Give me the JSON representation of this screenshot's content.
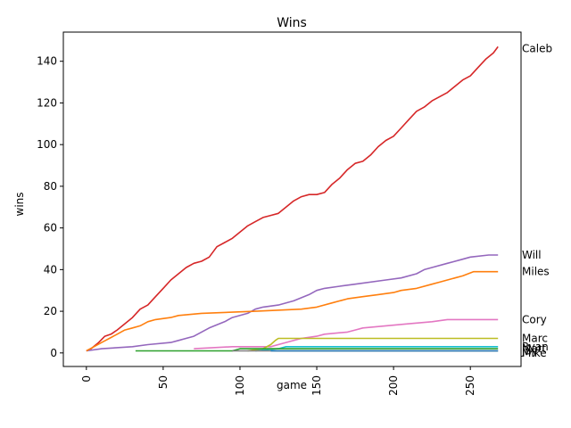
{
  "chart_data": {
    "type": "line",
    "title": "Wins",
    "xlabel": "game",
    "ylabel": "wins",
    "xlim": [
      -15,
      283
    ],
    "ylim": [
      -6.5,
      154
    ],
    "x_ticks": [
      0,
      50,
      100,
      150,
      200,
      250
    ],
    "y_ticks": [
      0,
      20,
      40,
      60,
      80,
      100,
      120,
      140
    ],
    "grid": false,
    "legend": "labels at right end of lines",
    "series": [
      {
        "name": "Caleb",
        "color": "#d62728",
        "label_y": 146,
        "points": [
          [
            0,
            1
          ],
          [
            3,
            2
          ],
          [
            8,
            5
          ],
          [
            12,
            8
          ],
          [
            16,
            9
          ],
          [
            20,
            11
          ],
          [
            25,
            14
          ],
          [
            30,
            17
          ],
          [
            35,
            21
          ],
          [
            40,
            23
          ],
          [
            45,
            27
          ],
          [
            50,
            31
          ],
          [
            55,
            35
          ],
          [
            60,
            38
          ],
          [
            65,
            41
          ],
          [
            70,
            43
          ],
          [
            75,
            44
          ],
          [
            80,
            46
          ],
          [
            85,
            51
          ],
          [
            90,
            53
          ],
          [
            95,
            55
          ],
          [
            100,
            58
          ],
          [
            105,
            61
          ],
          [
            110,
            63
          ],
          [
            115,
            65
          ],
          [
            120,
            66
          ],
          [
            125,
            67
          ],
          [
            130,
            70
          ],
          [
            135,
            73
          ],
          [
            140,
            75
          ],
          [
            145,
            76
          ],
          [
            150,
            76
          ],
          [
            155,
            77
          ],
          [
            160,
            81
          ],
          [
            165,
            84
          ],
          [
            170,
            88
          ],
          [
            175,
            91
          ],
          [
            180,
            92
          ],
          [
            185,
            95
          ],
          [
            190,
            99
          ],
          [
            195,
            102
          ],
          [
            200,
            104
          ],
          [
            205,
            108
          ],
          [
            210,
            112
          ],
          [
            215,
            116
          ],
          [
            220,
            118
          ],
          [
            225,
            121
          ],
          [
            230,
            123
          ],
          [
            235,
            125
          ],
          [
            240,
            128
          ],
          [
            245,
            131
          ],
          [
            250,
            133
          ],
          [
            255,
            137
          ],
          [
            260,
            141
          ],
          [
            265,
            144
          ],
          [
            268,
            147
          ]
        ]
      },
      {
        "name": "Will",
        "color": "#9467bd",
        "label_y": 47,
        "points": [
          [
            0,
            1
          ],
          [
            10,
            2
          ],
          [
            30,
            3
          ],
          [
            40,
            4
          ],
          [
            55,
            5
          ],
          [
            60,
            6
          ],
          [
            70,
            8
          ],
          [
            75,
            10
          ],
          [
            80,
            12
          ],
          [
            90,
            15
          ],
          [
            95,
            17
          ],
          [
            105,
            19
          ],
          [
            110,
            21
          ],
          [
            115,
            22
          ],
          [
            125,
            23
          ],
          [
            135,
            25
          ],
          [
            145,
            28
          ],
          [
            150,
            30
          ],
          [
            155,
            31
          ],
          [
            165,
            32
          ],
          [
            175,
            33
          ],
          [
            195,
            35
          ],
          [
            205,
            36
          ],
          [
            215,
            38
          ],
          [
            220,
            40
          ],
          [
            225,
            41
          ],
          [
            235,
            43
          ],
          [
            245,
            45
          ],
          [
            250,
            46
          ],
          [
            262,
            47
          ],
          [
            268,
            47
          ]
        ]
      },
      {
        "name": "Miles",
        "color": "#ff7f0e",
        "label_y": 39,
        "points": [
          [
            0,
            1
          ],
          [
            5,
            3
          ],
          [
            10,
            5
          ],
          [
            15,
            7
          ],
          [
            20,
            9
          ],
          [
            25,
            11
          ],
          [
            30,
            12
          ],
          [
            35,
            13
          ],
          [
            40,
            15
          ],
          [
            45,
            16
          ],
          [
            55,
            17
          ],
          [
            60,
            18
          ],
          [
            75,
            19
          ],
          [
            110,
            20
          ],
          [
            140,
            21
          ],
          [
            150,
            22
          ],
          [
            160,
            24
          ],
          [
            170,
            26
          ],
          [
            180,
            27
          ],
          [
            190,
            28
          ],
          [
            200,
            29
          ],
          [
            205,
            30
          ],
          [
            215,
            31
          ],
          [
            225,
            33
          ],
          [
            230,
            34
          ],
          [
            240,
            36
          ],
          [
            245,
            37
          ],
          [
            252,
            39
          ],
          [
            268,
            39
          ]
        ]
      },
      {
        "name": "Cory",
        "color": "#e377c2",
        "label_y": 16,
        "points": [
          [
            70,
            2
          ],
          [
            95,
            3
          ],
          [
            120,
            3
          ],
          [
            130,
            5
          ],
          [
            140,
            7
          ],
          [
            150,
            8
          ],
          [
            155,
            9
          ],
          [
            170,
            10
          ],
          [
            175,
            11
          ],
          [
            180,
            12
          ],
          [
            195,
            13
          ],
          [
            210,
            14
          ],
          [
            225,
            15
          ],
          [
            235,
            16
          ],
          [
            268,
            16
          ]
        ]
      },
      {
        "name": "Marc",
        "color": "#bcbd22",
        "label_y": 7,
        "points": [
          [
            105,
            1
          ],
          [
            115,
            2
          ],
          [
            120,
            4
          ],
          [
            123,
            6
          ],
          [
            125,
            7
          ],
          [
            268,
            7
          ]
        ]
      },
      {
        "name": "Ryan",
        "color": "#17becf",
        "label_y": 3,
        "points": [
          [
            110,
            1
          ],
          [
            125,
            2
          ],
          [
            130,
            3
          ],
          [
            268,
            3
          ]
        ]
      },
      {
        "name": "Matt",
        "color": "#2ca02c",
        "label_y": 2,
        "points": [
          [
            32,
            1
          ],
          [
            95,
            1
          ],
          [
            100,
            2
          ],
          [
            268,
            2
          ]
        ]
      },
      {
        "name": "Jay",
        "color": "#7f7f7f",
        "label_y": 1,
        "points": [
          [
            95,
            1
          ],
          [
            268,
            1
          ]
        ]
      },
      {
        "name": "Mike",
        "color": "#1f77b4",
        "label_y": 0,
        "points": [
          [
            120,
            1
          ],
          [
            268,
            1
          ]
        ]
      }
    ]
  }
}
